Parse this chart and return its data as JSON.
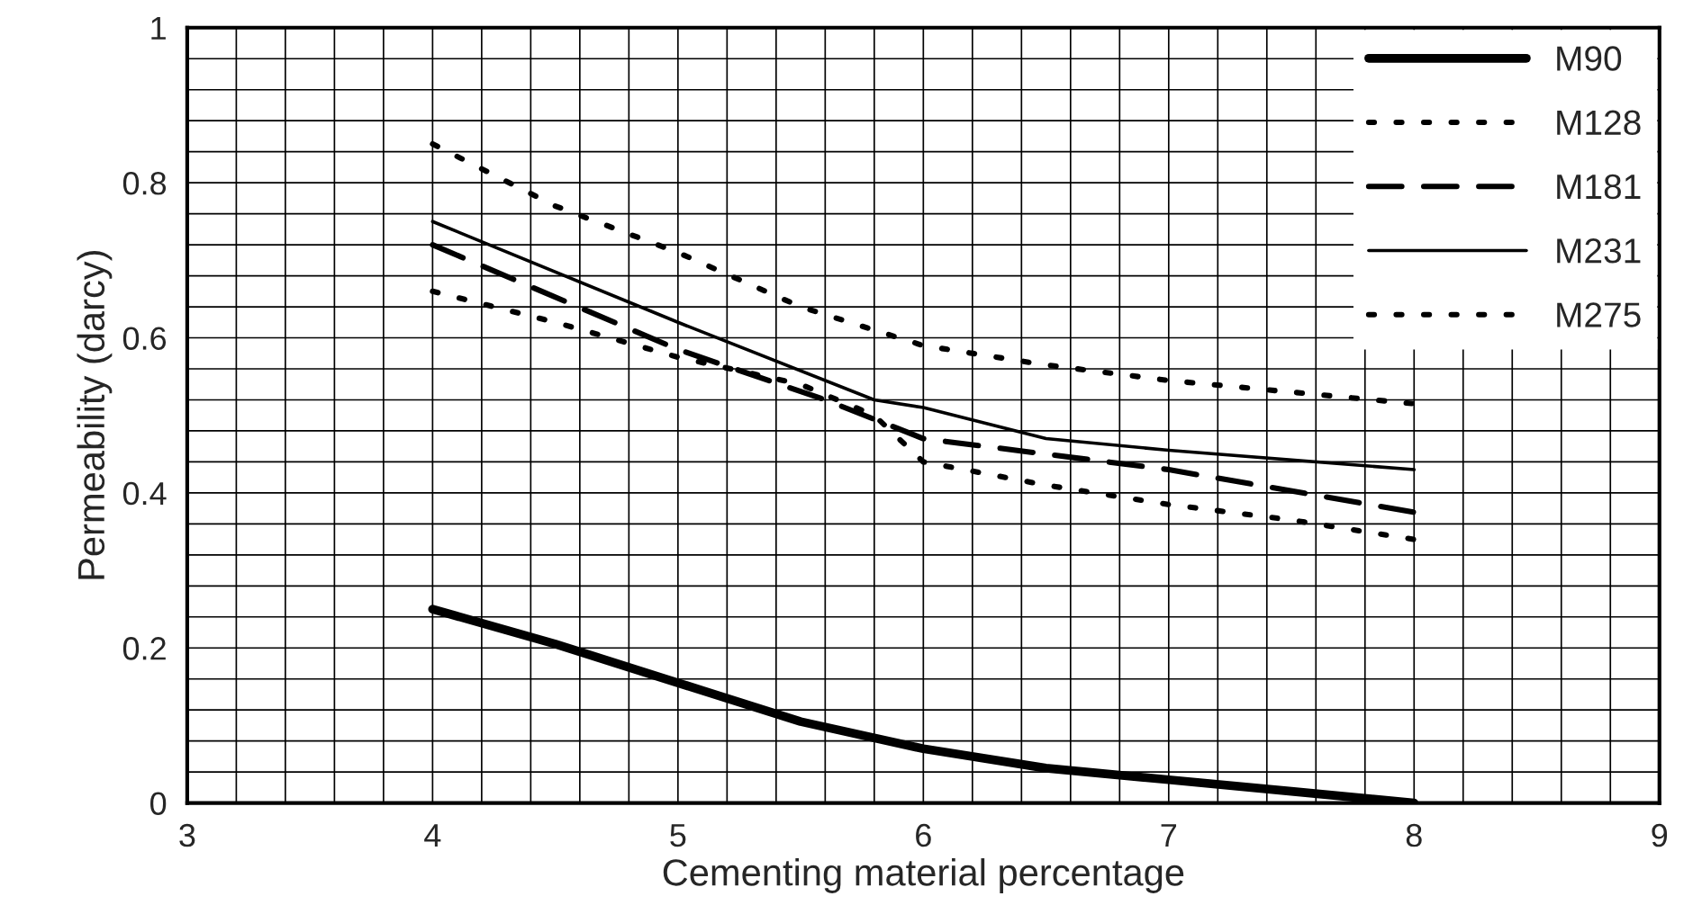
{
  "chart_data": {
    "type": "line",
    "xlabel": "Cementing material percentage",
    "ylabel": "Permeability (darcy)",
    "xlim": [
      3,
      9
    ],
    "xticks": [
      3,
      4,
      5,
      6,
      7,
      8,
      9
    ],
    "ylim": [
      0,
      1
    ],
    "yticks": [
      0,
      0.2,
      0.4,
      0.6,
      0.8,
      1
    ],
    "grid": true,
    "legend": "top right",
    "marker": "none",
    "series": [
      {
        "name": "M90",
        "color": "#000000",
        "line_style": "solid",
        "x": [
          4,
          4.5,
          5,
          5.5,
          6,
          6.5,
          7,
          7.5,
          8
        ],
        "values": [
          0.25,
          0.205,
          0.155,
          0.105,
          0.07,
          0.045,
          0.03,
          0.015,
          0.0
        ]
      },
      {
        "name": "M128",
        "color": "#000000",
        "line_style": "dotted",
        "x": [
          4,
          4.5,
          5,
          5.5,
          5.8,
          6,
          6.5,
          7,
          7.5,
          8
        ],
        "values": [
          0.66,
          0.62,
          0.575,
          0.54,
          0.5,
          0.44,
          0.41,
          0.385,
          0.365,
          0.34
        ]
      },
      {
        "name": "M181",
        "color": "#000000",
        "line_style": "dashed",
        "x": [
          4,
          5,
          5.6,
          6,
          7,
          8
        ],
        "values": [
          0.72,
          0.585,
          0.52,
          0.47,
          0.43,
          0.375
        ]
      },
      {
        "name": "M231",
        "color": "#000000",
        "line_style": "solid",
        "x": [
          4,
          5,
          5.8,
          6,
          6.5,
          7,
          8
        ],
        "values": [
          0.75,
          0.62,
          0.52,
          0.51,
          0.47,
          0.455,
          0.43
        ]
      },
      {
        "name": "M275",
        "color": "#000000",
        "line_style": "dotted",
        "x": [
          4,
          4.5,
          5,
          5.5,
          6,
          6.5,
          7,
          7.5,
          8
        ],
        "values": [
          0.85,
          0.77,
          0.71,
          0.64,
          0.59,
          0.565,
          0.545,
          0.53,
          0.515
        ]
      }
    ]
  }
}
